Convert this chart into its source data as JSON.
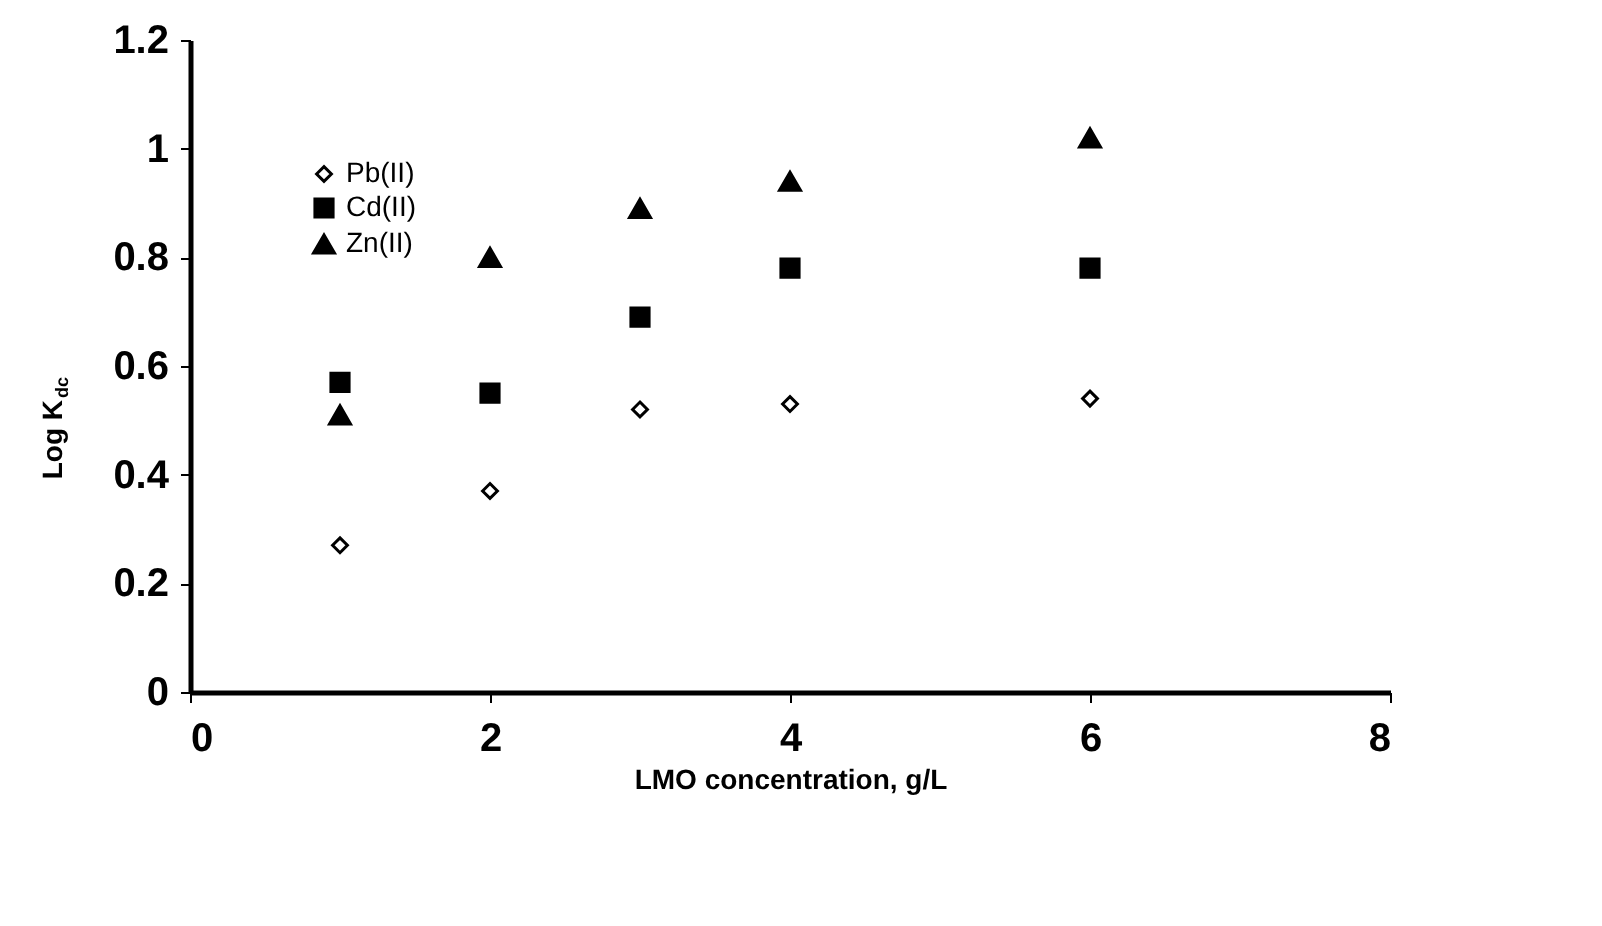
{
  "chart_data": {
    "type": "scatter",
    "xlabel": "LMO concentration, g/L",
    "ylabel": "Log K$_{dc}$",
    "x": [
      1,
      2,
      3,
      4,
      6
    ],
    "series": [
      {
        "name": "Pb(II)",
        "color": "#000000",
        "marker": "diamond",
        "values": [
          0.27,
          0.37,
          0.52,
          0.53,
          0.54
        ]
      },
      {
        "name": "Cd(II)",
        "color": "#000000",
        "marker": "square",
        "values": [
          0.57,
          0.55,
          0.69,
          0.78,
          0.78
        ]
      },
      {
        "name": "Zn(II)",
        "color": "#000000",
        "marker": "triangle",
        "values": [
          0.51,
          0.8,
          0.89,
          0.94,
          1.02
        ]
      }
    ],
    "xlim": [
      0,
      8
    ],
    "xticks": [
      0,
      2,
      4,
      6,
      8
    ],
    "ylim": [
      0,
      1.2
    ],
    "yticks": [
      0,
      0.2,
      0.4,
      0.6,
      0.8,
      1,
      1.2
    ],
    "grid": false,
    "legend": "top left"
  }
}
